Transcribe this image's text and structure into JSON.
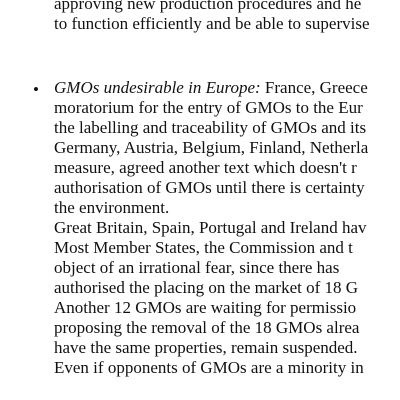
{
  "document": {
    "top_lines": [
      "approving new production procedures and he",
      "to function efficiently and be able to supervise"
    ],
    "bullet_symbol": "•",
    "bullet_lead": "GMOs undesirable in Europe:",
    "bullet_first_line_rest": " France, Greece",
    "paragraph_lines": [
      "moratorium for the entry of GMOs to the Eur",
      "the labelling and traceability of GMOs and its",
      "Germany, Austria, Belgium, Finland, Netherla",
      "measure, agreed another text which doesn't r",
      "authorisation of GMOs until there is certainty",
      "the environment.",
      "Great Britain, Spain, Portugal and Ireland hav",
      "Most Member States, the Commission and t",
      "object of an irrational fear, since there has",
      "authorised the placing on the market of 18 G",
      "Another 12 GMOs are waiting for permissio",
      "proposing the removal of the 18 GMOs alrea",
      "have the same properties, remain suspended.",
      "Even if opponents of GMOs are a minority in"
    ]
  }
}
